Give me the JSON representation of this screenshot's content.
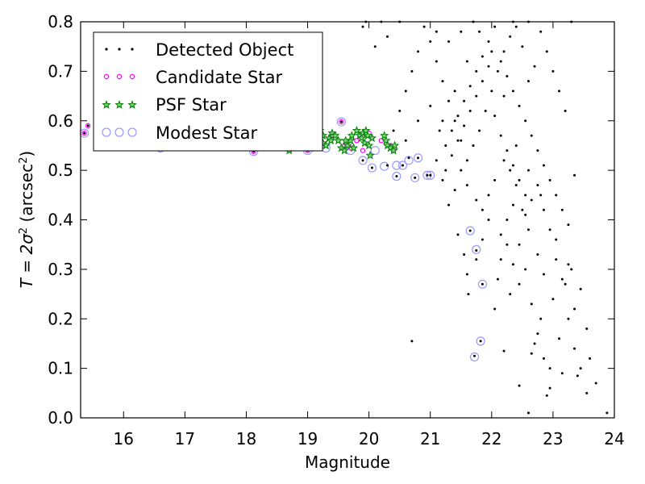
{
  "chart_data": {
    "type": "scatter",
    "xlabel": "Magnitude",
    "ylabel_prefix": "T = 2σ",
    "ylabel_sup": "2",
    "ylabel_unit": " (arcsec",
    "ylabel_unit_sup": "2",
    "ylabel_close": ")",
    "xlim": [
      15.3,
      24.0
    ],
    "ylim": [
      0.0,
      0.8
    ],
    "xticks": [
      16,
      17,
      18,
      19,
      20,
      21,
      22,
      23,
      24
    ],
    "yticks": [
      0.0,
      0.1,
      0.2,
      0.3,
      0.4,
      0.5,
      0.6,
      0.7,
      0.8
    ],
    "xtick_labels": [
      "16",
      "17",
      "18",
      "19",
      "20",
      "21",
      "22",
      "23",
      "24"
    ],
    "ytick_labels": [
      "0.0",
      "0.1",
      "0.2",
      "0.3",
      "0.4",
      "0.5",
      "0.6",
      "0.7",
      "0.8"
    ],
    "grid": false,
    "legend_position": "top-left",
    "legend": [
      {
        "label": "Detected Object",
        "marker": "dot",
        "color": "#000000"
      },
      {
        "label": "Candidate Star",
        "marker": "small-circle",
        "color": "#ff00ff"
      },
      {
        "label": "PSF Star",
        "marker": "star",
        "color": "#008000"
      },
      {
        "label": "Modest Star",
        "marker": "large-circle",
        "color": "#9999ff"
      }
    ],
    "series": [
      {
        "name": "Detected Object",
        "points": [
          [
            15.36,
            0.575
          ],
          [
            15.42,
            0.59
          ],
          [
            16.1,
            0.55
          ],
          [
            16.6,
            0.545
          ],
          [
            17.4,
            0.548
          ],
          [
            18.12,
            0.538
          ],
          [
            18.5,
            0.55
          ],
          [
            18.7,
            0.545
          ],
          [
            19.0,
            0.54
          ],
          [
            19.55,
            0.598
          ],
          [
            19.9,
            0.52
          ],
          [
            20.05,
            0.505
          ],
          [
            20.3,
            0.51
          ],
          [
            20.45,
            0.488
          ],
          [
            20.55,
            0.51
          ],
          [
            20.65,
            0.525
          ],
          [
            20.75,
            0.485
          ],
          [
            20.8,
            0.525
          ],
          [
            20.95,
            0.49
          ],
          [
            21.0,
            0.49
          ],
          [
            20.7,
            0.155
          ],
          [
            21.65,
            0.378
          ],
          [
            21.62,
            0.25
          ],
          [
            21.75,
            0.338
          ],
          [
            21.85,
            0.27
          ],
          [
            21.82,
            0.155
          ],
          [
            21.72,
            0.125
          ],
          [
            22.2,
            0.135
          ],
          [
            22.45,
            0.065
          ],
          [
            22.6,
            0.01
          ],
          [
            22.9,
            0.045
          ],
          [
            23.4,
            0.085
          ],
          [
            23.7,
            0.07
          ],
          [
            23.88,
            0.01
          ],
          [
            23.6,
            0.12
          ],
          [
            23.55,
            0.18
          ],
          [
            23.45,
            0.26
          ],
          [
            23.3,
            0.3
          ],
          [
            23.2,
            0.27
          ],
          [
            23.0,
            0.24
          ],
          [
            22.8,
            0.2
          ],
          [
            22.7,
            0.15
          ],
          [
            22.65,
            0.13
          ],
          [
            22.95,
            0.1
          ],
          [
            23.1,
            0.16
          ],
          [
            23.35,
            0.22
          ],
          [
            22.55,
            0.3
          ],
          [
            22.45,
            0.35
          ],
          [
            22.6,
            0.38
          ],
          [
            22.75,
            0.33
          ],
          [
            22.85,
            0.29
          ],
          [
            23.05,
            0.36
          ],
          [
            23.25,
            0.31
          ],
          [
            22.3,
            0.25
          ],
          [
            22.1,
            0.28
          ],
          [
            22.05,
            0.22
          ],
          [
            22.15,
            0.32
          ],
          [
            22.25,
            0.4
          ],
          [
            22.35,
            0.43
          ],
          [
            22.5,
            0.42
          ],
          [
            22.55,
            0.45
          ],
          [
            22.4,
            0.47
          ],
          [
            22.3,
            0.5
          ],
          [
            22.2,
            0.52
          ],
          [
            22.05,
            0.48
          ],
          [
            21.95,
            0.45
          ],
          [
            21.85,
            0.42
          ],
          [
            21.75,
            0.44
          ],
          [
            21.6,
            0.47
          ],
          [
            21.5,
            0.5
          ],
          [
            21.4,
            0.46
          ],
          [
            21.3,
            0.43
          ],
          [
            21.2,
            0.48
          ],
          [
            21.1,
            0.52
          ],
          [
            21.25,
            0.55
          ],
          [
            21.35,
            0.58
          ],
          [
            21.45,
            0.61
          ],
          [
            21.55,
            0.64
          ],
          [
            21.65,
            0.67
          ],
          [
            21.75,
            0.7
          ],
          [
            21.85,
            0.73
          ],
          [
            21.95,
            0.76
          ],
          [
            22.05,
            0.79
          ],
          [
            22.15,
            0.72
          ],
          [
            22.25,
            0.69
          ],
          [
            22.35,
            0.66
          ],
          [
            22.45,
            0.63
          ],
          [
            22.55,
            0.6
          ],
          [
            22.65,
            0.57
          ],
          [
            22.75,
            0.54
          ],
          [
            22.85,
            0.51
          ],
          [
            22.95,
            0.48
          ],
          [
            23.05,
            0.45
          ],
          [
            23.15,
            0.42
          ],
          [
            23.25,
            0.39
          ],
          [
            23.35,
            0.49
          ],
          [
            23.2,
            0.62
          ],
          [
            23.1,
            0.66
          ],
          [
            23.0,
            0.7
          ],
          [
            22.9,
            0.74
          ],
          [
            22.8,
            0.78
          ],
          [
            22.7,
            0.71
          ],
          [
            22.6,
            0.68
          ],
          [
            22.5,
            0.75
          ],
          [
            22.4,
            0.79
          ],
          [
            22.3,
            0.77
          ],
          [
            22.2,
            0.74
          ],
          [
            22.1,
            0.7
          ],
          [
            22.0,
            0.66
          ],
          [
            21.9,
            0.62
          ],
          [
            21.8,
            0.58
          ],
          [
            21.7,
            0.55
          ],
          [
            21.6,
            0.52
          ],
          [
            21.5,
            0.56
          ],
          [
            21.4,
            0.6
          ],
          [
            21.3,
            0.64
          ],
          [
            21.2,
            0.68
          ],
          [
            21.1,
            0.72
          ],
          [
            21.0,
            0.76
          ],
          [
            20.9,
            0.79
          ],
          [
            20.8,
            0.74
          ],
          [
            20.7,
            0.7
          ],
          [
            20.6,
            0.66
          ],
          [
            20.5,
            0.62
          ],
          [
            20.4,
            0.58
          ],
          [
            20.6,
            0.56
          ],
          [
            20.8,
            0.6
          ],
          [
            21.0,
            0.63
          ],
          [
            21.2,
            0.6
          ],
          [
            21.4,
            0.66
          ],
          [
            21.6,
            0.72
          ],
          [
            21.8,
            0.78
          ],
          [
            22.0,
            0.74
          ],
          [
            22.2,
            0.65
          ],
          [
            22.4,
            0.55
          ],
          [
            22.6,
            0.5
          ],
          [
            22.8,
            0.45
          ],
          [
            21.5,
            0.78
          ],
          [
            21.3,
            0.76
          ],
          [
            21.1,
            0.78
          ],
          [
            20.3,
            0.77
          ],
          [
            20.1,
            0.75
          ],
          [
            19.9,
            0.79
          ],
          [
            19.95,
            0.8
          ],
          [
            20.2,
            0.8
          ],
          [
            20.5,
            0.8
          ],
          [
            21.7,
            0.8
          ],
          [
            22.35,
            0.8
          ],
          [
            22.6,
            0.8
          ],
          [
            23.3,
            0.8
          ],
          [
            21.15,
            0.58
          ],
          [
            21.25,
            0.5
          ],
          [
            21.35,
            0.53
          ],
          [
            21.45,
            0.56
          ],
          [
            21.55,
            0.59
          ],
          [
            21.65,
            0.62
          ],
          [
            21.75,
            0.65
          ],
          [
            21.85,
            0.68
          ],
          [
            21.95,
            0.71
          ],
          [
            22.05,
            0.61
          ],
          [
            22.15,
            0.57
          ],
          [
            22.25,
            0.54
          ],
          [
            22.35,
            0.51
          ],
          [
            22.45,
            0.48
          ],
          [
            22.55,
            0.41
          ],
          [
            22.65,
            0.44
          ],
          [
            22.75,
            0.47
          ],
          [
            22.85,
            0.42
          ],
          [
            22.95,
            0.38
          ],
          [
            23.05,
            0.32
          ],
          [
            23.15,
            0.28
          ],
          [
            23.25,
            0.2
          ],
          [
            23.35,
            0.14
          ],
          [
            23.45,
            0.1
          ],
          [
            23.55,
            0.05
          ],
          [
            23.15,
            0.09
          ],
          [
            22.95,
            0.06
          ],
          [
            22.85,
            0.12
          ],
          [
            22.75,
            0.17
          ],
          [
            22.65,
            0.23
          ],
          [
            22.45,
            0.27
          ],
          [
            22.35,
            0.31
          ],
          [
            22.25,
            0.35
          ],
          [
            22.15,
            0.37
          ],
          [
            21.95,
            0.4
          ],
          [
            21.85,
            0.36
          ],
          [
            21.75,
            0.32
          ],
          [
            21.6,
            0.29
          ],
          [
            21.55,
            0.33
          ],
          [
            21.45,
            0.37
          ]
        ]
      },
      {
        "name": "Candidate Star",
        "points": [
          [
            15.36,
            0.575
          ],
          [
            15.42,
            0.59
          ],
          [
            16.1,
            0.55
          ],
          [
            16.6,
            0.545
          ],
          [
            17.4,
            0.548
          ],
          [
            18.12,
            0.538
          ],
          [
            18.5,
            0.55
          ],
          [
            18.7,
            0.545
          ],
          [
            19.0,
            0.54
          ],
          [
            19.55,
            0.598
          ],
          [
            19.2,
            0.56
          ],
          [
            19.4,
            0.57
          ],
          [
            19.6,
            0.55
          ],
          [
            19.8,
            0.56
          ],
          [
            20.0,
            0.575
          ],
          [
            20.2,
            0.56
          ],
          [
            20.4,
            0.54
          ],
          [
            20.35,
            0.55
          ],
          [
            19.9,
            0.54
          ],
          [
            19.7,
            0.545
          ]
        ]
      },
      {
        "name": "PSF Star",
        "points": [
          [
            18.7,
            0.54
          ],
          [
            18.9,
            0.55
          ],
          [
            19.05,
            0.545
          ],
          [
            19.1,
            0.57
          ],
          [
            19.15,
            0.56
          ],
          [
            19.2,
            0.58
          ],
          [
            19.25,
            0.555
          ],
          [
            19.3,
            0.55
          ],
          [
            19.35,
            0.565
          ],
          [
            19.4,
            0.575
          ],
          [
            19.45,
            0.57
          ],
          [
            19.5,
            0.56
          ],
          [
            19.55,
            0.545
          ],
          [
            19.6,
            0.54
          ],
          [
            19.65,
            0.55
          ],
          [
            19.7,
            0.56
          ],
          [
            19.75,
            0.545
          ],
          [
            19.8,
            0.58
          ],
          [
            19.85,
            0.57
          ],
          [
            19.88,
            0.565
          ],
          [
            19.9,
            0.575
          ],
          [
            19.93,
            0.555
          ],
          [
            19.95,
            0.58
          ],
          [
            19.98,
            0.57
          ],
          [
            20.0,
            0.55
          ],
          [
            20.02,
            0.53
          ],
          [
            20.05,
            0.565
          ],
          [
            20.25,
            0.57
          ],
          [
            20.28,
            0.56
          ],
          [
            20.3,
            0.55
          ],
          [
            20.35,
            0.545
          ],
          [
            20.4,
            0.54
          ],
          [
            20.42,
            0.55
          ],
          [
            19.25,
            0.57
          ],
          [
            19.38,
            0.56
          ],
          [
            19.62,
            0.56
          ],
          [
            19.72,
            0.57
          ]
        ]
      },
      {
        "name": "Modest Star",
        "points": [
          [
            15.36,
            0.575
          ],
          [
            15.95,
            0.578
          ],
          [
            16.1,
            0.55
          ],
          [
            16.6,
            0.545
          ],
          [
            17.4,
            0.548
          ],
          [
            18.12,
            0.538
          ],
          [
            18.5,
            0.55
          ],
          [
            18.7,
            0.545
          ],
          [
            19.0,
            0.54
          ],
          [
            19.55,
            0.598
          ],
          [
            19.9,
            0.52
          ],
          [
            20.05,
            0.505
          ],
          [
            20.25,
            0.508
          ],
          [
            20.45,
            0.51
          ],
          [
            20.45,
            0.488
          ],
          [
            20.65,
            0.52
          ],
          [
            20.75,
            0.485
          ],
          [
            20.8,
            0.525
          ],
          [
            20.95,
            0.49
          ],
          [
            21.0,
            0.49
          ],
          [
            21.65,
            0.378
          ],
          [
            21.75,
            0.34
          ],
          [
            21.85,
            0.27
          ],
          [
            21.82,
            0.155
          ],
          [
            21.72,
            0.123
          ],
          [
            20.55,
            0.51
          ],
          [
            19.2,
            0.55
          ],
          [
            19.3,
            0.545
          ],
          [
            19.7,
            0.54
          ],
          [
            20.1,
            0.54
          ]
        ]
      }
    ]
  }
}
